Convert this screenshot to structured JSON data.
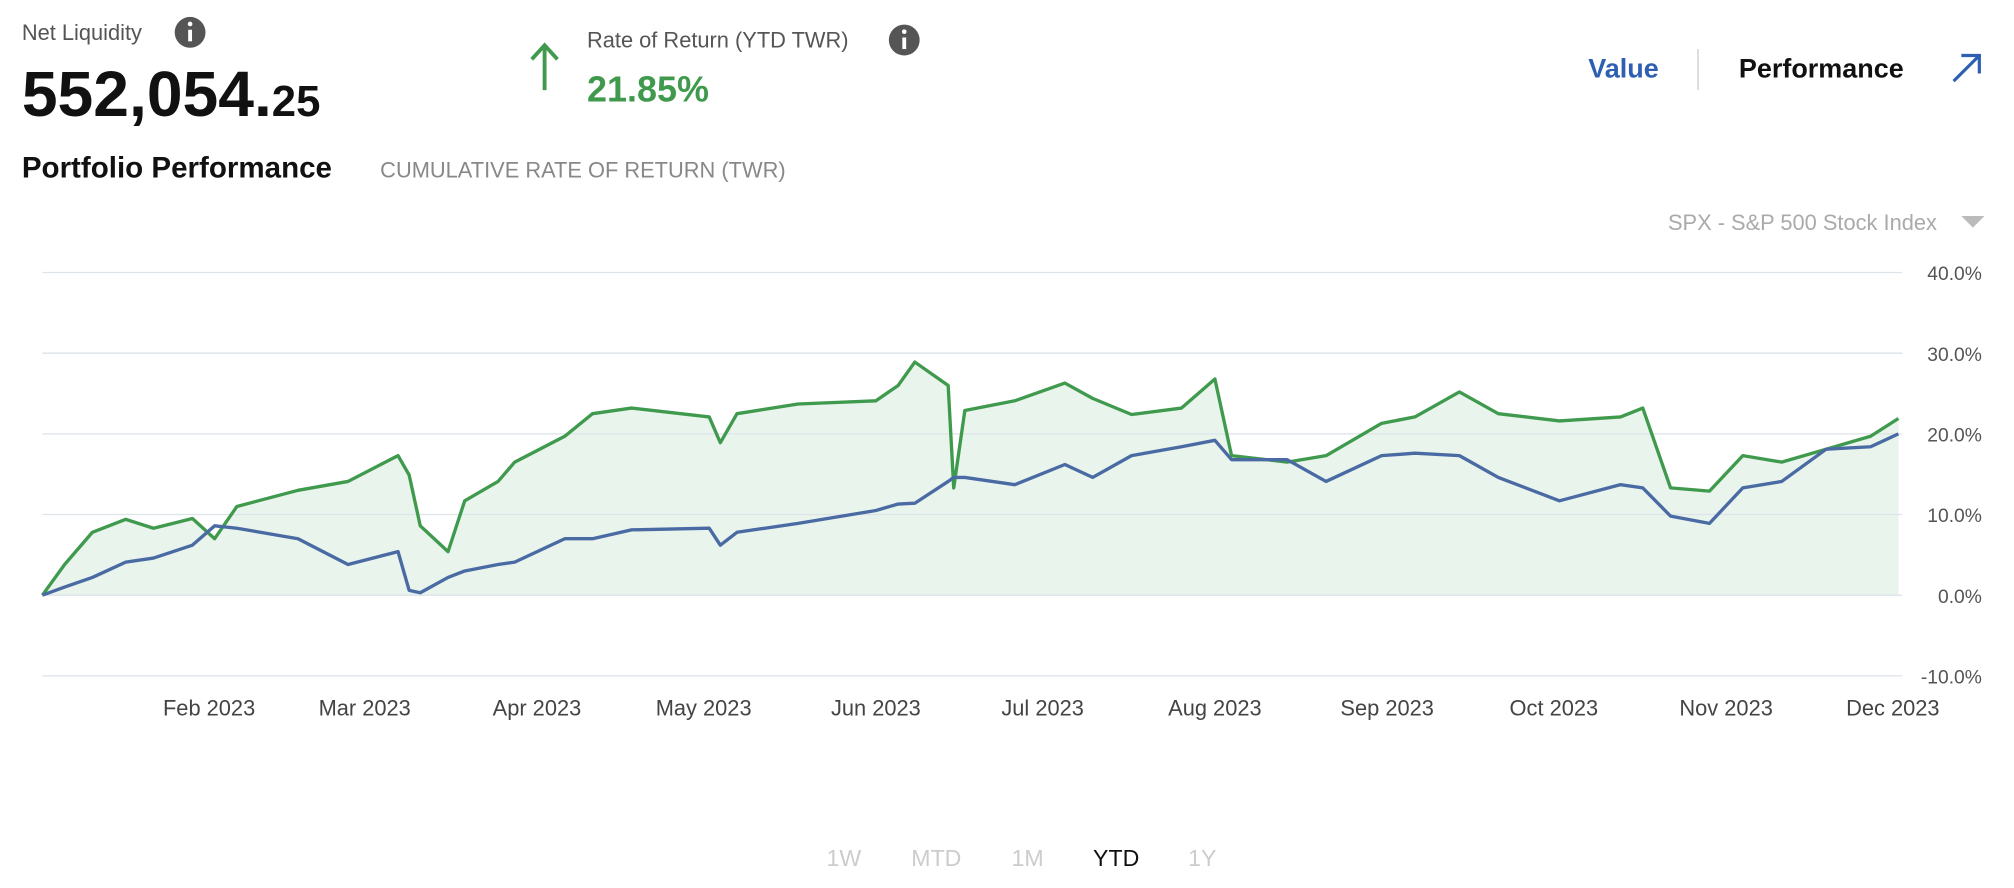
{
  "header": {
    "net_liquidity_label": "Net Liquidity",
    "net_liquidity_main": "552,054.",
    "net_liquidity_cents": "25",
    "return_label": "Rate of Return (YTD TWR)",
    "return_value": "21.85%",
    "tabs": [
      "Value",
      "Performance"
    ]
  },
  "section": {
    "title": "Portfolio Performance",
    "subtitle": "CUMULATIVE RATE OF RETURN (TWR)",
    "benchmark_selector": "SPX - S&P 500 Stock Index"
  },
  "range_buttons": [
    "1W",
    "MTD",
    "1M",
    "YTD",
    "1Y"
  ],
  "range_active_index": 3,
  "chart_data": {
    "type": "line",
    "x": [
      1,
      5,
      10,
      16,
      21,
      28,
      32,
      36,
      47,
      56,
      65,
      67,
      69,
      74,
      77,
      83,
      86,
      95,
      100,
      107,
      121,
      123,
      126,
      137,
      151,
      155,
      158,
      164,
      165,
      167,
      176,
      185,
      190,
      197,
      206,
      212,
      215,
      225,
      232,
      242,
      248,
      256,
      263,
      274,
      285,
      289,
      294,
      301,
      307,
      314,
      322,
      330,
      335
    ],
    "xlim": [
      1,
      335
    ],
    "xticks": [
      {
        "value": 31,
        "label": "Feb 2023"
      },
      {
        "value": 59,
        "label": "Mar 2023"
      },
      {
        "value": 90,
        "label": "Apr 2023"
      },
      {
        "value": 120,
        "label": "May 2023"
      },
      {
        "value": 151,
        "label": "Jun 2023"
      },
      {
        "value": 181,
        "label": "Jul 2023"
      },
      {
        "value": 212,
        "label": "Aug 2023"
      },
      {
        "value": 243,
        "label": "Sep 2023"
      },
      {
        "value": 273,
        "label": "Oct 2023"
      },
      {
        "value": 304,
        "label": "Nov 2023"
      },
      {
        "value": 334,
        "label": "Dec 2023"
      }
    ],
    "ylim": [
      -10,
      40
    ],
    "yticks": [
      {
        "value": -10,
        "label": "-10.0%"
      },
      {
        "value": 0,
        "label": "0.0%"
      },
      {
        "value": 10,
        "label": "10.0%"
      },
      {
        "value": 20,
        "label": "20.0%"
      },
      {
        "value": 30,
        "label": "30.0%"
      },
      {
        "value": 40,
        "label": "40.0%"
      }
    ],
    "grid": true,
    "area_fill": "#e9f4ec",
    "series": [
      {
        "color": "#3f9a4e",
        "fill_area": true,
        "values": [
          0,
          3.8,
          7.8,
          9.4,
          8.3,
          9.5,
          7.0,
          11.0,
          13.0,
          14.1,
          17.3,
          14.9,
          8.6,
          5.4,
          11.7,
          14.1,
          16.5,
          19.7,
          22.5,
          23.2,
          22.1,
          18.9,
          22.5,
          23.7,
          24.1,
          26.0,
          28.9,
          26.0,
          13.3,
          22.9,
          24.1,
          26.3,
          24.4,
          22.4,
          23.2,
          26.8,
          17.3,
          16.5,
          17.3,
          21.3,
          22.1,
          25.2,
          22.5,
          21.6,
          22.1,
          23.2,
          13.3,
          12.9,
          17.3,
          16.5,
          18.1,
          19.7,
          21.9
        ]
      },
      {
        "color": "#4a6aa3",
        "fill_area": false,
        "values": [
          0,
          1.0,
          2.2,
          4.1,
          4.6,
          6.2,
          8.6,
          8.3,
          7.0,
          3.8,
          5.4,
          0.6,
          0.3,
          2.2,
          3.0,
          3.8,
          4.1,
          7.0,
          7.0,
          8.1,
          8.3,
          6.2,
          7.8,
          8.9,
          10.5,
          11.3,
          11.4,
          14.1,
          14.6,
          14.6,
          13.7,
          16.2,
          14.6,
          17.3,
          18.4,
          19.2,
          16.8,
          16.8,
          14.1,
          17.3,
          17.6,
          17.3,
          14.6,
          11.7,
          13.7,
          13.3,
          9.8,
          8.9,
          13.3,
          14.1,
          18.1,
          18.4,
          20.0
        ]
      }
    ]
  }
}
